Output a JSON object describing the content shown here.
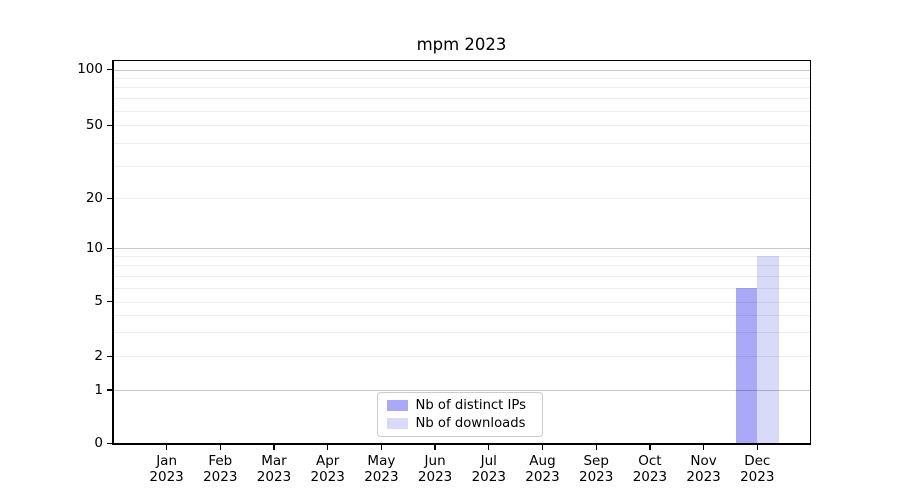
{
  "title": "mpm 2023",
  "chart_data": {
    "type": "bar",
    "title": "mpm 2023",
    "categories": [
      {
        "month": "Jan",
        "year": "2023"
      },
      {
        "month": "Feb",
        "year": "2023"
      },
      {
        "month": "Mar",
        "year": "2023"
      },
      {
        "month": "Apr",
        "year": "2023"
      },
      {
        "month": "May",
        "year": "2023"
      },
      {
        "month": "Jun",
        "year": "2023"
      },
      {
        "month": "Jul",
        "year": "2023"
      },
      {
        "month": "Aug",
        "year": "2023"
      },
      {
        "month": "Sep",
        "year": "2023"
      },
      {
        "month": "Oct",
        "year": "2023"
      },
      {
        "month": "Nov",
        "year": "2023"
      },
      {
        "month": "Dec",
        "year": "2023"
      }
    ],
    "series": [
      {
        "name": "Nb of distinct IPs",
        "color": "#a9a9f8",
        "values": [
          0,
          0,
          0,
          0,
          0,
          0,
          0,
          0,
          0,
          0,
          0,
          6
        ]
      },
      {
        "name": "Nb of downloads",
        "color": "#d9d9fa",
        "values": [
          0,
          0,
          0,
          0,
          0,
          0,
          0,
          0,
          0,
          0,
          0,
          9
        ]
      }
    ],
    "xlabel": "",
    "ylabel": "",
    "y_axis": {
      "scale": "symlog",
      "ylim": [
        0,
        115
      ],
      "tick_values": [
        0,
        1,
        2,
        5,
        10,
        20,
        50,
        100
      ],
      "tick_labels": [
        "0",
        "1",
        "2",
        "5",
        "10",
        "20",
        "50",
        "100"
      ],
      "major_gridline_values": [
        1,
        10,
        100
      ],
      "minor_gridline_values": [
        2,
        3,
        4,
        5,
        6,
        7,
        8,
        9,
        20,
        30,
        40,
        50,
        60,
        70,
        80,
        90
      ]
    },
    "grid": true,
    "legend_position": "lower center",
    "legend_entries": [
      "Nb of distinct IPs",
      "Nb of downloads"
    ]
  },
  "colors": {
    "bar_distinct_ips": "#a9a9f8",
    "bar_downloads": "#d9d9fa",
    "major_grid": "rgba(0,0,0,0.22)",
    "minor_grid": "rgba(0,0,0,0.07)",
    "spine": "#000000",
    "background": "#ffffff",
    "legend_border": "#cccccc",
    "text": "#000000"
  }
}
